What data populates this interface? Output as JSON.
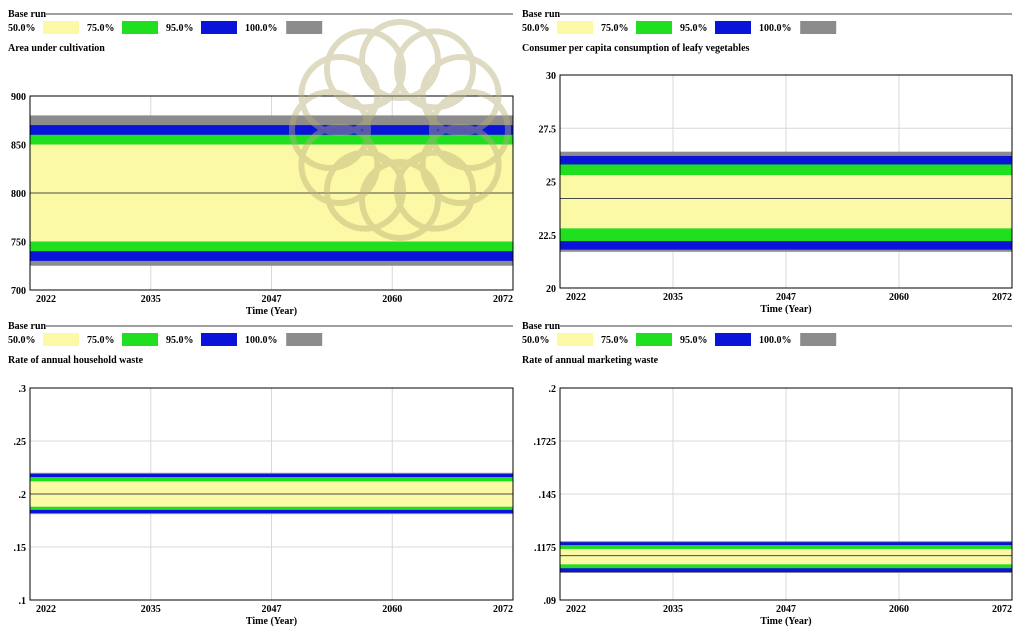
{
  "colors": {
    "band_50": "#fbf8a6",
    "band_75": "#1fdf1f",
    "band_95": "#0a14d8",
    "band_100": "#8c8c8c",
    "median_line": "#4a4a4a",
    "grid": "#d8d8d8",
    "watermark": "#b9b07a"
  },
  "chart_data": [
    {
      "type": "area",
      "run_label": "Base run",
      "legend": [
        {
          "label": "50.0%",
          "color_key": "band_50"
        },
        {
          "label": "75.0%",
          "color_key": "band_75"
        },
        {
          "label": "95.0%",
          "color_key": "band_95"
        },
        {
          "label": "100.0%",
          "color_key": "band_100"
        }
      ],
      "title": "Area under cultivation",
      "xlabel": "Time (Year)",
      "x_ticks": [
        "2022",
        "2035",
        "2047",
        "2060",
        "2072"
      ],
      "xlim": [
        2022,
        2072
      ],
      "y_ticks": [
        "900",
        "850",
        "800",
        "750",
        "700"
      ],
      "ylim": [
        700,
        900
      ],
      "median": 800,
      "bands": {
        "p50": [
          750,
          850
        ],
        "p75": [
          740,
          860
        ],
        "p95": [
          730,
          870
        ],
        "p100": [
          725,
          880
        ]
      }
    },
    {
      "type": "area",
      "run_label": "Base run",
      "legend": [
        {
          "label": "50.0%",
          "color_key": "band_50"
        },
        {
          "label": "75.0%",
          "color_key": "band_75"
        },
        {
          "label": "95.0%",
          "color_key": "band_95"
        },
        {
          "label": "100.0%",
          "color_key": "band_100"
        }
      ],
      "title": "Consumer per capita consumption of leafy vegetables",
      "xlabel": "Time (Year)",
      "x_ticks": [
        "2022",
        "2035",
        "2047",
        "2060",
        "2072"
      ],
      "xlim": [
        2022,
        2072
      ],
      "y_ticks": [
        "30",
        "27.5",
        "25",
        "22.5",
        "20"
      ],
      "ylim": [
        20,
        30
      ],
      "median": 24.2,
      "bands": {
        "p50": [
          22.8,
          25.3
        ],
        "p75": [
          22.2,
          25.8
        ],
        "p95": [
          21.8,
          26.2
        ],
        "p100": [
          21.7,
          26.4
        ]
      }
    },
    {
      "type": "area",
      "run_label": "Base run",
      "legend": [
        {
          "label": "50.0%",
          "color_key": "band_50"
        },
        {
          "label": "75.0%",
          "color_key": "band_75"
        },
        {
          "label": "95.0%",
          "color_key": "band_95"
        },
        {
          "label": "100.0%",
          "color_key": "band_100"
        }
      ],
      "title": "Rate of annual household waste",
      "xlabel": "Time (Year)",
      "x_ticks": [
        "2022",
        "2035",
        "2047",
        "2060",
        "2072"
      ],
      "xlim": [
        2022,
        2072
      ],
      "y_ticks": [
        ".3",
        ".25",
        ".2",
        ".15",
        ".1"
      ],
      "ylim": [
        0.1,
        0.3
      ],
      "median": 0.2,
      "bands": {
        "p50": [
          0.188,
          0.212
        ],
        "p75": [
          0.185,
          0.216
        ],
        "p95": [
          0.182,
          0.219
        ],
        "p100": [
          0.181,
          0.22
        ]
      }
    },
    {
      "type": "area",
      "run_label": "Base run",
      "legend": [
        {
          "label": "50.0%",
          "color_key": "band_50"
        },
        {
          "label": "75.0%",
          "color_key": "band_75"
        },
        {
          "label": "95.0%",
          "color_key": "band_95"
        },
        {
          "label": "100.0%",
          "color_key": "band_100"
        }
      ],
      "title": "Rate of annual marketing waste",
      "xlabel": "Time (Year)",
      "x_ticks": [
        "2022",
        "2035",
        "2047",
        "2060",
        "2072"
      ],
      "xlim": [
        2022,
        2072
      ],
      "y_ticks": [
        ".2",
        ".1725",
        ".145",
        ".1175",
        ".09"
      ],
      "ylim": [
        0.09,
        0.2
      ],
      "median": 0.113,
      "bands": {
        "p50": [
          0.1085,
          0.1165
        ],
        "p75": [
          0.1065,
          0.1185
        ],
        "p95": [
          0.1045,
          0.12
        ],
        "p100": [
          0.104,
          0.1205
        ]
      }
    }
  ]
}
